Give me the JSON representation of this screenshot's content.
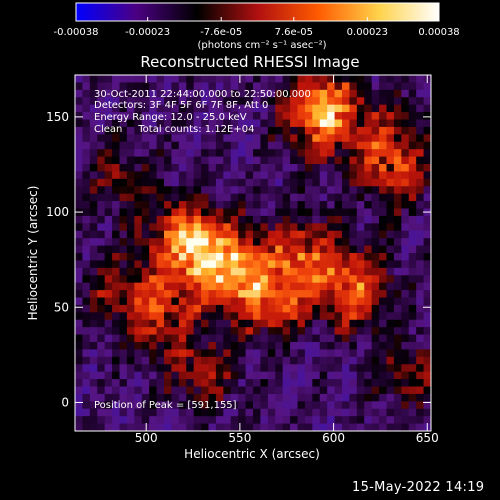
{
  "chart_data": {
    "type": "heatmap",
    "title": "Reconstructed RHESSI Image",
    "xlabel": "Heliocentric X (arcsec)",
    "ylabel": "Heliocentric Y (arcsec)",
    "xlim": [
      462,
      652
    ],
    "ylim": [
      -15,
      172
    ],
    "xticks": [
      "500",
      "550",
      "600",
      "650"
    ],
    "xtick_values": [
      500,
      550,
      600,
      650
    ],
    "yticks": [
      "0",
      "50",
      "100",
      "150"
    ],
    "ytick_values": [
      0,
      50,
      100,
      150
    ],
    "colorbar": {
      "ticks": [
        "-0.00038",
        "-0.00023",
        "-7.6e-05",
        "7.6e-05",
        "0.00023",
        "0.00038"
      ],
      "tick_values": [
        -0.00038,
        -0.00023,
        -7.6e-05,
        7.6e-05,
        0.00023,
        0.00038
      ],
      "range": [
        -0.00038,
        0.00038
      ],
      "units_label": "(photons cm⁻² s⁻¹ asec⁻²)",
      "colors": [
        "#0000ff",
        "#4b0082",
        "#000000",
        "#b01010",
        "#ff5a00",
        "#ffd24a",
        "#ffffff"
      ]
    },
    "annotations": [
      "30-Oct-2011 22:44:00.000 to 22:50:00.000",
      "Detectors: 3F 4F 5F 6F 7F 8F, Att 0",
      "Energy Range: 12.0 - 25.0 keV",
      "Clean     Total counts: 1.12E+04"
    ],
    "peak_label": "Position of Peak = [591,155]",
    "peak": [
      591,
      155
    ],
    "emission_regions": [
      {
        "x": 594,
        "y": 153,
        "amplitude": 0.00038
      },
      {
        "x": 540,
        "y": 72,
        "amplitude": 0.00034
      },
      {
        "x": 520,
        "y": 85,
        "amplitude": 0.0003
      },
      {
        "x": 565,
        "y": 55,
        "amplitude": 0.00026
      },
      {
        "x": 610,
        "y": 60,
        "amplitude": 0.00028
      },
      {
        "x": 505,
        "y": 48,
        "amplitude": 0.00024
      },
      {
        "x": 583,
        "y": 78,
        "amplitude": 0.00022
      },
      {
        "x": 633,
        "y": 120,
        "amplitude": 0.00016
      },
      {
        "x": 487,
        "y": 118,
        "amplitude": 0.00012
      },
      {
        "x": 640,
        "y": 15,
        "amplitude": 0.00012
      },
      {
        "x": 478,
        "y": 60,
        "amplitude": 0.0001
      },
      {
        "x": 530,
        "y": 15,
        "amplitude": 0.00015
      },
      {
        "x": 628,
        "y": 138,
        "amplitude": 0.00014
      }
    ]
  },
  "footer": {
    "date": "15-May-2022 14:19"
  }
}
